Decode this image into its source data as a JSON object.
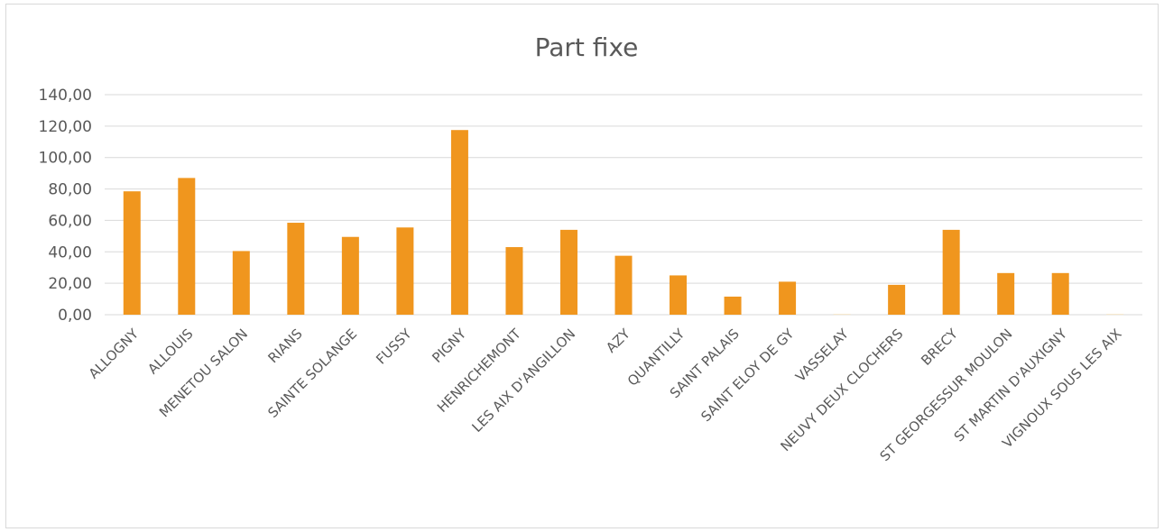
{
  "chart_data": {
    "type": "bar",
    "title": "Part fixe",
    "xlabel": "",
    "ylabel": "",
    "ylim": [
      0,
      140
    ],
    "yticks": [
      "0,00",
      "20,00",
      "40,00",
      "60,00",
      "80,00",
      "100,00",
      "120,00",
      "140,00"
    ],
    "grid": true,
    "legend": "none",
    "categories": [
      "ALLOGNY",
      "ALLOUIS",
      "MENETOU SALON",
      "RIANS",
      "SAINTE SOLANGE",
      "FUSSY",
      "PIGNY",
      "HENRICHEMONT",
      "LES AIX D'ANGILLON",
      "AZY",
      "QUANTILLY",
      "SAINT PALAIS",
      "SAINT ELOY DE GY",
      "VASSELAY",
      "NEUVY DEUX CLOCHERS",
      "BRECY",
      "ST GEORGESSUR MOULON",
      "ST MARTIN D'AUXIGNY",
      "VIGNOUX SOUS LES AIX"
    ],
    "values": [
      78.5,
      87,
      40.5,
      58.5,
      49.5,
      55.5,
      117.5,
      43,
      54,
      37.5,
      25,
      11.5,
      21,
      0.5,
      19,
      54,
      26.5,
      26.5,
      0.5
    ],
    "colors": {
      "bar": "#f0961e",
      "bar_small": "#f5e6c8"
    }
  }
}
